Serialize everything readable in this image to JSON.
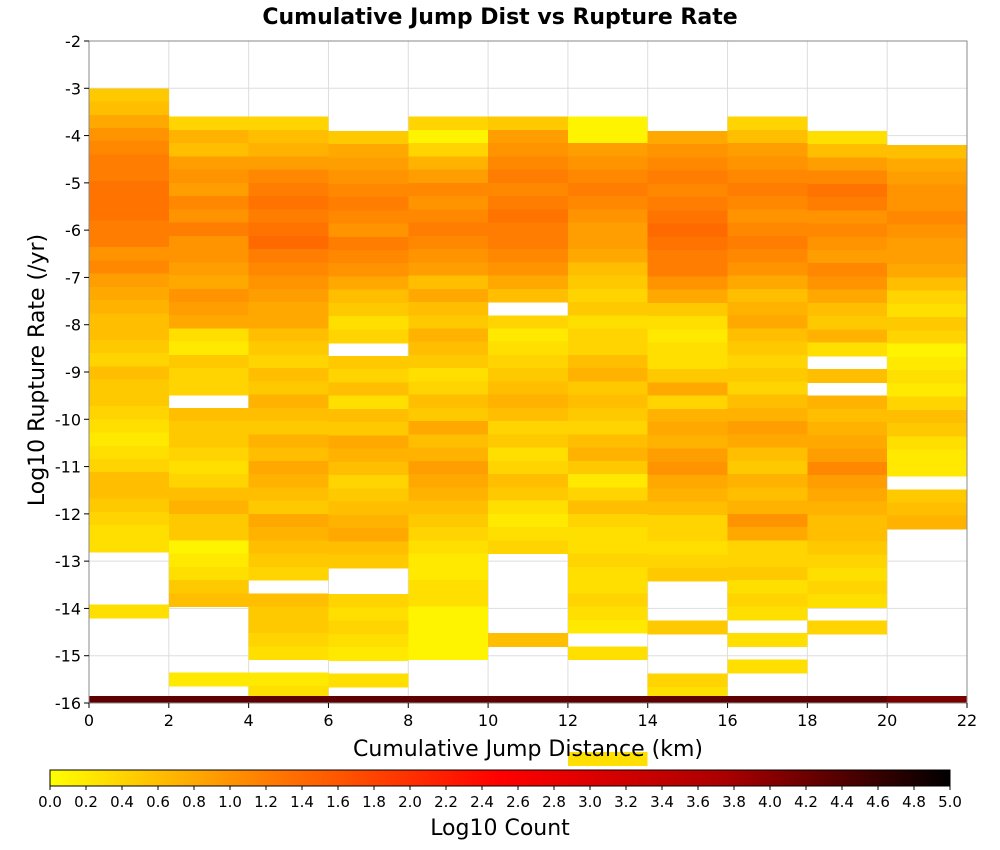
{
  "chart_data": {
    "type": "heatmap",
    "title": "Cumulative Jump Dist vs Rupture Rate",
    "xlabel": "Cumulative Jump Distance (km)",
    "ylabel": "Log10 Rupture Rate (/yr)",
    "xlim": [
      0,
      22
    ],
    "ylim": [
      -16,
      -2
    ],
    "x_ticks": [
      "0",
      "2",
      "4",
      "6",
      "8",
      "10",
      "12",
      "14",
      "16",
      "18",
      "20",
      "22"
    ],
    "y_ticks": [
      "-2",
      "-3",
      "-4",
      "-5",
      "-6",
      "-7",
      "-8",
      "-9",
      "-10",
      "-11",
      "-12",
      "-13",
      "-14",
      "-15",
      "-16"
    ],
    "x_bin_width": 2,
    "y_bin_width": 0.28,
    "grid": true,
    "colorbar": {
      "label": "Log10 Count",
      "min": 0.0,
      "max": 5.0,
      "ticks": [
        "0.0",
        "0.2",
        "0.4",
        "0.6",
        "0.8",
        "1.0",
        "1.2",
        "1.4",
        "1.6",
        "1.8",
        "2.0",
        "2.2",
        "2.4",
        "2.6",
        "2.8",
        "3.0",
        "3.2",
        "3.4",
        "3.6",
        "3.8",
        "4.0",
        "4.2",
        "4.4",
        "4.6",
        "4.8",
        "5.0"
      ],
      "colors": [
        "#ffff00",
        "#ff7800",
        "#ff0000",
        "#aa0000",
        "#000000"
      ]
    },
    "columns": [
      {
        "x": 1,
        "y_top": -3.0,
        "log10_counts": [
          0.5,
          0.6,
          0.8,
          1.0,
          1.1,
          1.2,
          1.2,
          1.3,
          1.3,
          1.3,
          1.2,
          1.2,
          1.0,
          1.1,
          0.9,
          0.8,
          0.7,
          0.6,
          0.6,
          0.5,
          0.4,
          0.6,
          0.5,
          0.5,
          0.4,
          0.3,
          0.2,
          0.3,
          0.4,
          0.6,
          0.6,
          0.5,
          0.4,
          0.3,
          0.3,
          null,
          null,
          null,
          null,
          0.3
        ]
      },
      {
        "x": 3,
        "y_top": -3.6,
        "log10_counts": [
          0.4,
          0.7,
          0.6,
          0.9,
          1.0,
          0.9,
          1.1,
          1.0,
          1.2,
          1.0,
          1.0,
          0.9,
          0.8,
          1.0,
          0.9,
          0.8,
          0.3,
          0.2,
          0.5,
          0.4,
          0.4,
          null,
          0.6,
          0.5,
          0.5,
          0.4,
          0.3,
          0.4,
          0.6,
          0.7,
          0.5,
          0.5,
          0.1,
          0.2,
          0.3,
          0.5,
          0.6,
          null,
          null,
          null,
          null,
          null,
          0.2
        ]
      },
      {
        "x": 5,
        "y_top": -3.6,
        "log10_counts": [
          0.4,
          0.6,
          0.7,
          0.9,
          1.1,
          1.2,
          1.3,
          1.2,
          1.3,
          1.4,
          1.2,
          1.1,
          1.0,
          0.9,
          0.8,
          0.8,
          0.6,
          0.5,
          0.4,
          0.6,
          0.5,
          0.7,
          0.6,
          0.5,
          0.7,
          0.6,
          0.8,
          0.7,
          0.6,
          0.5,
          0.8,
          0.7,
          0.6,
          0.5,
          0.4,
          null,
          0.6,
          0.5,
          0.5,
          0.4,
          0.3,
          null,
          0.2,
          0.3
        ]
      },
      {
        "x": 7,
        "y_top": -3.9,
        "log10_counts": [
          0.5,
          0.8,
          0.9,
          1.0,
          1.1,
          1.2,
          1.1,
          1.0,
          1.2,
          1.1,
          1.0,
          0.8,
          0.6,
          0.5,
          0.3,
          0.4,
          null,
          0.5,
          0.4,
          0.6,
          0.3,
          0.6,
          0.5,
          0.8,
          0.7,
          0.6,
          0.4,
          0.5,
          0.6,
          0.7,
          0.8,
          0.6,
          0.5,
          null,
          null,
          0.4,
          0.3,
          0.4,
          0.3,
          0.2,
          null,
          0.3
        ]
      },
      {
        "x": 9,
        "y_top": -3.6,
        "log10_counts": [
          0.4,
          0.1,
          0.4,
          0.7,
          0.9,
          1.1,
          1.0,
          1.1,
          1.2,
          1.1,
          1.0,
          0.9,
          0.6,
          0.8,
          0.6,
          0.5,
          0.7,
          0.6,
          0.5,
          0.3,
          0.4,
          0.6,
          0.5,
          0.8,
          0.6,
          0.7,
          0.9,
          0.8,
          0.7,
          0.6,
          0.5,
          0.4,
          0.3,
          0.2,
          0.2,
          0.3,
          0.3,
          0.1,
          0.1,
          0.1,
          0.1
        ]
      },
      {
        "x": 11,
        "y_top": -3.6,
        "log10_counts": [
          0.5,
          0.9,
          1.0,
          1.1,
          1.2,
          1.1,
          1.2,
          1.3,
          1.2,
          1.2,
          1.1,
          1.0,
          0.8,
          0.6,
          null,
          0.4,
          0.2,
          0.3,
          0.4,
          0.5,
          0.6,
          0.7,
          0.6,
          0.4,
          0.5,
          0.3,
          0.4,
          0.6,
          0.5,
          0.3,
          0.2,
          0.3,
          0.4,
          null,
          null,
          null,
          null,
          null,
          null,
          0.6
        ]
      },
      {
        "x": 13,
        "y_top": -3.6,
        "log10_counts": [
          0.1,
          0.1,
          0.9,
          1.0,
          1.1,
          1.2,
          1.1,
          1.0,
          0.9,
          0.9,
          0.8,
          0.6,
          0.5,
          0.4,
          0.5,
          0.3,
          0.4,
          0.4,
          0.6,
          0.7,
          0.5,
          0.6,
          0.5,
          0.4,
          0.6,
          0.7,
          0.5,
          0.2,
          0.4,
          0.6,
          0.4,
          0.3,
          0.3,
          0.4,
          0.3,
          0.3,
          0.4,
          0.3,
          0.2,
          null,
          0.3,
          null,
          null,
          null,
          null,
          null,
          null,
          null,
          0.3
        ]
      },
      {
        "x": 15,
        "y_top": -3.9,
        "log10_counts": [
          0.8,
          1.0,
          1.1,
          1.2,
          1.1,
          1.2,
          1.3,
          1.4,
          1.3,
          1.2,
          1.2,
          1.0,
          0.8,
          0.5,
          0.3,
          0.2,
          0.3,
          0.3,
          0.5,
          0.8,
          0.4,
          0.7,
          0.8,
          0.7,
          0.9,
          1.0,
          0.8,
          0.7,
          0.6,
          0.4,
          0.4,
          0.3,
          0.4,
          0.5,
          null,
          null,
          null,
          0.5,
          null,
          null,
          null,
          0.4,
          0.3
        ]
      },
      {
        "x": 17,
        "y_top": -3.6,
        "log10_counts": [
          0.4,
          0.6,
          0.9,
          1.0,
          1.1,
          1.2,
          1.1,
          1.0,
          1.1,
          1.2,
          1.1,
          1.0,
          0.8,
          0.6,
          0.7,
          0.8,
          0.6,
          0.5,
          0.4,
          0.5,
          0.4,
          0.6,
          0.7,
          0.9,
          0.8,
          0.6,
          0.5,
          0.7,
          0.6,
          0.7,
          1.0,
          0.8,
          0.4,
          0.4,
          0.5,
          0.3,
          0.4,
          0.3,
          null,
          0.3,
          null,
          0.3
        ]
      },
      {
        "x": 19,
        "y_top": -3.9,
        "log10_counts": [
          0.3,
          0.6,
          0.9,
          1.1,
          1.3,
          1.2,
          1.0,
          1.1,
          1.0,
          0.9,
          1.1,
          1.0,
          0.8,
          0.6,
          0.5,
          0.7,
          0.3,
          null,
          0.6,
          null,
          0.7,
          0.6,
          0.7,
          0.8,
          0.9,
          1.1,
          0.9,
          0.8,
          0.7,
          0.6,
          0.6,
          0.5,
          0.4,
          0.3,
          0.4,
          0.3,
          null,
          0.4
        ]
      },
      {
        "x": 21,
        "y_top": -4.2,
        "log10_counts": [
          0.6,
          0.8,
          0.9,
          1.0,
          1.0,
          1.1,
          1.0,
          0.9,
          0.9,
          0.8,
          0.6,
          0.4,
          0.3,
          0.5,
          0.4,
          0.1,
          0.2,
          0.3,
          0.2,
          0.4,
          0.6,
          0.5,
          0.3,
          0.2,
          0.2,
          null,
          0.5,
          0.6,
          0.7
        ]
      }
    ],
    "bottom_band": {
      "y_range": [
        -16,
        -15.85
      ],
      "log10_counts": [
        4.3,
        4.3,
        4.3,
        4.3,
        4.3,
        4.3,
        4.3,
        4.3,
        4.3,
        4.3,
        4.1
      ]
    }
  }
}
